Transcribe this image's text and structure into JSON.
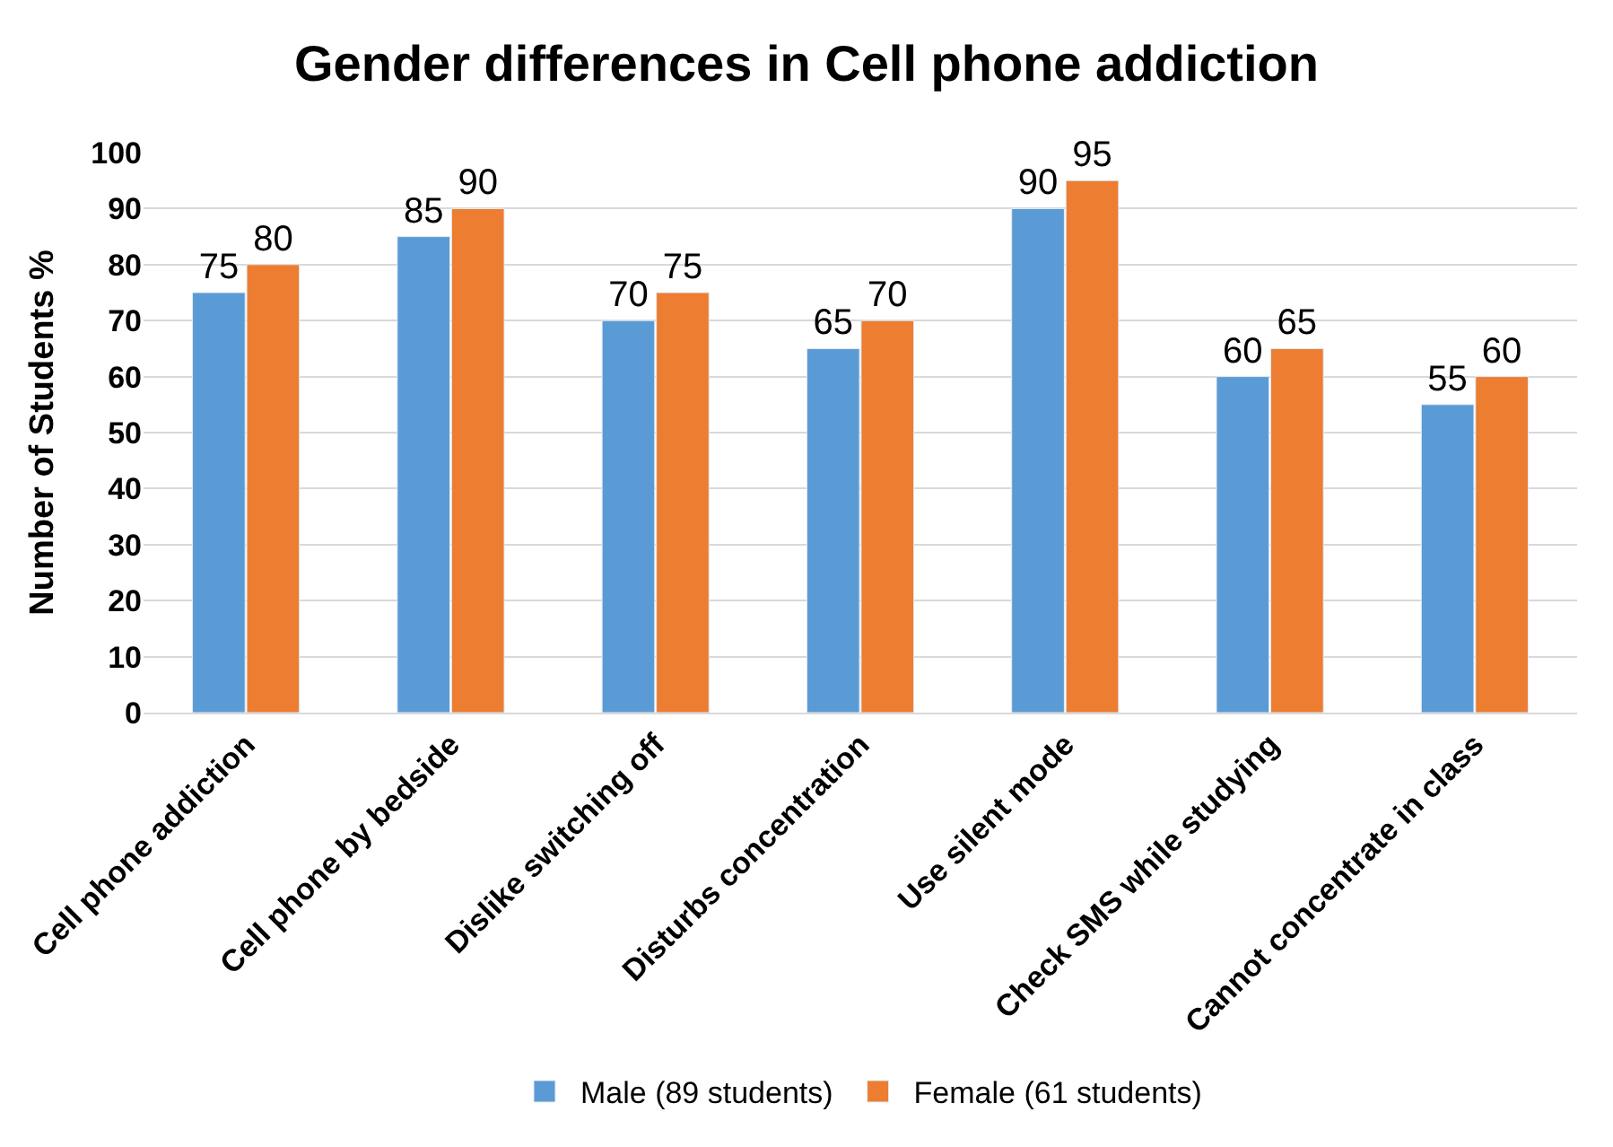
{
  "chart_data": {
    "type": "bar",
    "title": "Gender differences in Cell phone addiction",
    "ylabel": "Number of Students %",
    "categories": [
      "Cell phone addiction",
      "Cell phone by bedside",
      "Dislike switching off",
      "Disturbs concentration",
      "Use silent mode",
      "Check SMS while studying",
      "Cannot concentrate in class"
    ],
    "series": [
      {
        "name": "Male (89 students)",
        "color": "#5b9bd5",
        "values": [
          75,
          85,
          70,
          65,
          90,
          60,
          55
        ]
      },
      {
        "name": "Female (61 students)",
        "color": "#ed7d31",
        "values": [
          80,
          90,
          75,
          70,
          95,
          65,
          60
        ]
      }
    ],
    "ylim": [
      0,
      100
    ],
    "yticks": [
      0,
      10,
      20,
      30,
      40,
      50,
      60,
      70,
      80,
      90,
      100
    ],
    "grid": "y",
    "legend": "bottom",
    "data_labels": true
  }
}
